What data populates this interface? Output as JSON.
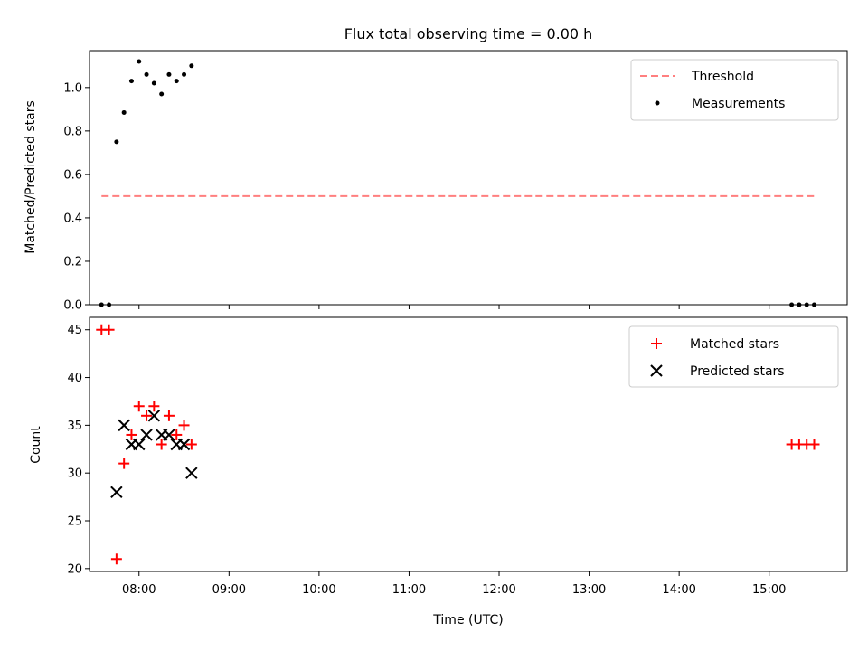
{
  "chart_data": [
    {
      "type": "scatter",
      "title": "Flux total observing time = 0.00 h",
      "ylabel": "Matched/Predicted stars",
      "xlabel": "",
      "xlim": [
        "07:27",
        "15:52"
      ],
      "ylim": [
        0,
        1.17
      ],
      "yticks": [
        "0.0",
        "0.2",
        "0.4",
        "0.6",
        "0.8",
        "1.0"
      ],
      "ytick_values": [
        0,
        0.2,
        0.4,
        0.6,
        0.8,
        1.0
      ],
      "legend_position": "top-right",
      "threshold": {
        "name": "Threshold",
        "value": 0.5,
        "x_range": [
          "07:35",
          "15:30"
        ],
        "color": "#ff7f7f",
        "style": "dashed"
      },
      "series": [
        {
          "name": "Measurements",
          "marker": "dot",
          "color": "#000000",
          "x": [
            "07:35",
            "07:40",
            "07:45",
            "07:50",
            "07:55",
            "08:00",
            "08:05",
            "08:10",
            "08:15",
            "08:20",
            "08:25",
            "08:30",
            "08:35",
            "15:15",
            "15:20",
            "15:25",
            "15:30"
          ],
          "y": [
            0.0,
            0.0,
            0.75,
            0.885,
            1.03,
            1.12,
            1.06,
            1.02,
            0.97,
            1.06,
            1.03,
            1.06,
            1.1,
            0.0,
            0.0,
            0.0,
            0.0
          ]
        }
      ]
    },
    {
      "type": "scatter",
      "title": "",
      "xlabel": "Time (UTC)",
      "ylabel": "Count",
      "xlim": [
        "07:27",
        "15:52"
      ],
      "ylim": [
        19.7,
        46.3
      ],
      "xticks": [
        "08:00",
        "09:00",
        "10:00",
        "11:00",
        "12:00",
        "13:00",
        "14:00",
        "15:00"
      ],
      "yticks": [
        "20",
        "25",
        "30",
        "35",
        "40",
        "45"
      ],
      "ytick_values": [
        20,
        25,
        30,
        35,
        40,
        45
      ],
      "legend_position": "top-right",
      "series": [
        {
          "name": "Matched stars",
          "marker": "plus",
          "color": "#ff0000",
          "x": [
            "07:35",
            "07:40",
            "07:45",
            "07:50",
            "07:55",
            "08:00",
            "08:05",
            "08:10",
            "08:15",
            "08:20",
            "08:25",
            "08:30",
            "08:35",
            "15:15",
            "15:20",
            "15:25",
            "15:30"
          ],
          "y": [
            45,
            45,
            21,
            31,
            34,
            37,
            36,
            37,
            33,
            36,
            34,
            35,
            33,
            33,
            33,
            33,
            33
          ]
        },
        {
          "name": "Predicted stars",
          "marker": "x",
          "color": "#000000",
          "x": [
            "07:45",
            "07:50",
            "07:55",
            "08:00",
            "08:05",
            "08:10",
            "08:15",
            "08:20",
            "08:25",
            "08:30",
            "08:35"
          ],
          "y": [
            28,
            35,
            33,
            33,
            34,
            36,
            34,
            34,
            33,
            33,
            30
          ]
        }
      ]
    }
  ]
}
